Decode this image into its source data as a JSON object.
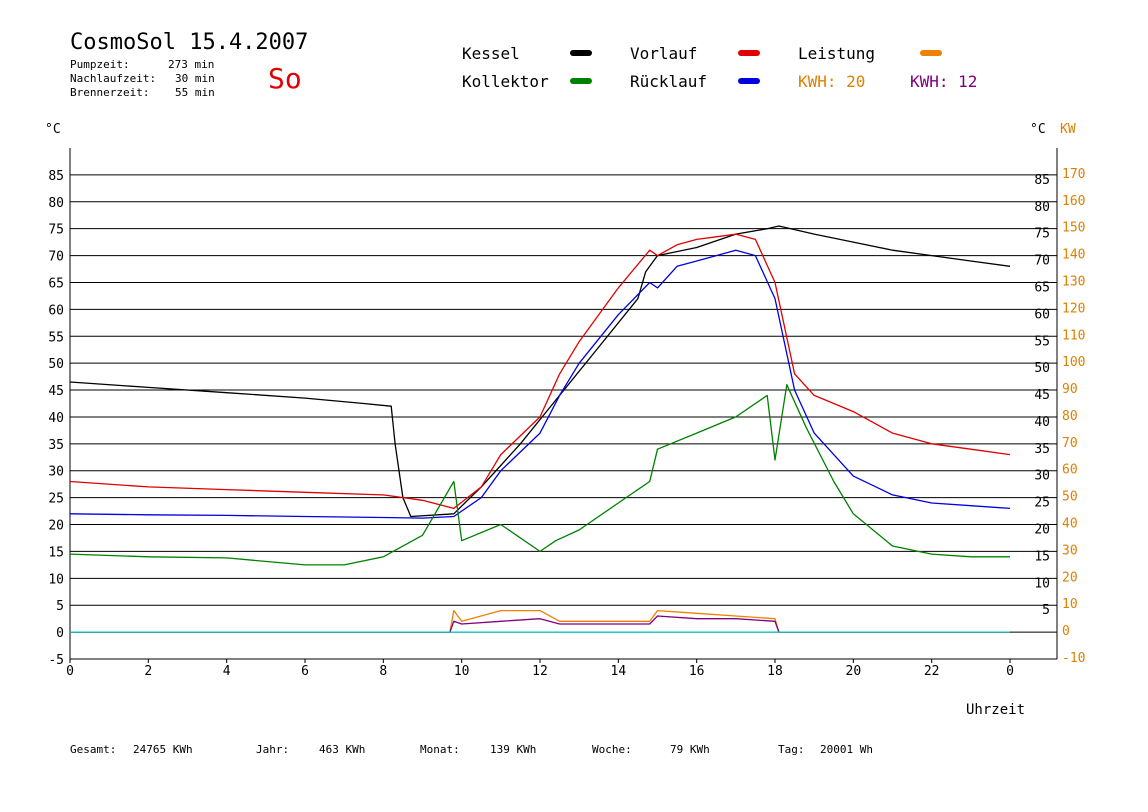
{
  "header": {
    "title": "CosmoSol 15.4.2007",
    "day": "So",
    "stats": [
      {
        "label": "Pumpzeit:",
        "value": "273 min"
      },
      {
        "label": "Nachlaufzeit:",
        "value": "30 min"
      },
      {
        "label": "Brennerzeit:",
        "value": "55 min"
      }
    ]
  },
  "legend": {
    "kessel": {
      "label": "Kessel",
      "color": "#000000"
    },
    "vorlauf": {
      "label": "Vorlauf",
      "color": "#e00000"
    },
    "leistung": {
      "label": "Leistung",
      "color": "#f08000"
    },
    "kollektor": {
      "label": "Kollektor",
      "color": "#008000"
    },
    "ruecklauf": {
      "label": "Rücklauf",
      "color": "#0000e0"
    },
    "kwh1": {
      "label": "KWH: 20",
      "color": "#e08000"
    },
    "kwh2": {
      "label": "KWH: 12",
      "color": "#800080"
    }
  },
  "axes": {
    "left_unit": "°C",
    "right_unit_c": "°C",
    "right_unit_kw": "KW",
    "x_label": "Uhrzeit"
  },
  "footer": [
    {
      "label": "Gesamt:",
      "value": "24765 KWh"
    },
    {
      "label": "Jahr:",
      "value": "463 KWh"
    },
    {
      "label": "Monat:",
      "value": "139 KWh"
    },
    {
      "label": "Woche:",
      "value": "79 KWh"
    },
    {
      "label": "Tag:",
      "value": "20001 Wh"
    }
  ],
  "chart_data": {
    "type": "line",
    "x_unit": "hour",
    "xlim": [
      0,
      24
    ],
    "x_ticks": [
      "0",
      "2",
      "4",
      "6",
      "8",
      "10",
      "12",
      "14",
      "16",
      "18",
      "20",
      "22",
      "0"
    ],
    "ylim": [
      -5,
      90
    ],
    "y_ticks_left": [
      "85",
      "80",
      "75",
      "70",
      "65",
      "60",
      "55",
      "50",
      "45",
      "40",
      "35",
      "30",
      "25",
      "20",
      "15",
      "10",
      "5",
      "0",
      "-5"
    ],
    "y_ticks_right_c": [
      "85",
      "80",
      "75",
      "70",
      "65",
      "60",
      "55",
      "50",
      "45",
      "40",
      "35",
      "30",
      "25",
      "20",
      "15",
      "10",
      "5"
    ],
    "y_ticks_right_kw": [
      "170",
      "160",
      "150",
      "140",
      "130",
      "120",
      "110",
      "100",
      "90",
      "80",
      "70",
      "60",
      "50",
      "40",
      "30",
      "20",
      "10",
      "0",
      "-10"
    ],
    "series": [
      {
        "name": "Kessel",
        "color": "#000000",
        "x": [
          0,
          2,
          4,
          6,
          7.5,
          8.2,
          8.3,
          8.5,
          8.7,
          9.8,
          10.5,
          11.5,
          12.5,
          13.5,
          14.5,
          14.7,
          15,
          16,
          17,
          17.8,
          18.1,
          19,
          20,
          21,
          22,
          23,
          24
        ],
        "y": [
          46.5,
          45.5,
          44.5,
          43.5,
          42.5,
          42,
          35,
          25,
          21.5,
          22,
          27,
          35,
          44,
          53,
          62,
          67,
          70,
          71.5,
          74,
          75,
          75.5,
          74,
          72.5,
          71,
          70,
          69,
          68
        ]
      },
      {
        "name": "Vorlauf",
        "color": "#e00000",
        "x": [
          0,
          2,
          4,
          6,
          8,
          9,
          9.8,
          10.5,
          11,
          12,
          12.5,
          13,
          14,
          14.8,
          15,
          15.5,
          16,
          16.5,
          17,
          17.5,
          18,
          18.5,
          19,
          20,
          21,
          22,
          23,
          24
        ],
        "y": [
          28,
          27,
          26.5,
          26,
          25.5,
          24.5,
          23,
          27,
          33,
          40,
          48,
          54,
          64,
          71,
          70,
          72,
          73,
          73.5,
          74,
          73,
          65,
          48,
          44,
          41,
          37,
          35,
          34,
          33
        ]
      },
      {
        "name": "Rücklauf",
        "color": "#0000e0",
        "x": [
          0,
          2,
          4,
          6,
          8,
          9,
          9.8,
          10.5,
          11,
          12,
          12.5,
          13,
          14,
          14.8,
          15,
          15.5,
          16,
          16.5,
          17,
          17.5,
          18,
          18.5,
          19,
          20,
          21,
          22,
          23,
          24
        ],
        "y": [
          22,
          21.8,
          21.7,
          21.5,
          21.3,
          21.2,
          21.5,
          25,
          30,
          37,
          44,
          50,
          59,
          65,
          64,
          68,
          69,
          70,
          71,
          70,
          62,
          45,
          37,
          29,
          25.5,
          24,
          23.5,
          23
        ]
      },
      {
        "name": "Kollektor",
        "color": "#008000",
        "x": [
          0,
          2,
          4,
          6,
          7,
          8,
          9,
          9.8,
          10,
          11,
          12,
          12.4,
          13,
          14,
          14.8,
          15,
          16,
          17,
          17.8,
          18,
          18.3,
          18.8,
          19.5,
          20,
          21,
          22,
          23,
          24
        ],
        "y": [
          14.5,
          14,
          13.8,
          12.5,
          12.5,
          14,
          18,
          28,
          17,
          20,
          15,
          17,
          19,
          24,
          28,
          34,
          37,
          40,
          44,
          32,
          46,
          38,
          28,
          22,
          16,
          14.5,
          14,
          14
        ]
      },
      {
        "name": "Leistung",
        "color": "#f08000",
        "x": [
          0,
          9.7,
          9.8,
          10,
          11,
          12,
          12.5,
          14,
          14.8,
          15,
          16,
          17,
          18,
          18.1,
          24
        ],
        "y": [
          0,
          0,
          4,
          2,
          4,
          4,
          2,
          2,
          2,
          4,
          3.5,
          3,
          2.5,
          0,
          0
        ]
      },
      {
        "name": "KWH",
        "color": "#800080",
        "x": [
          0,
          9.7,
          9.8,
          10,
          11,
          12,
          12.5,
          14,
          14.8,
          15,
          16,
          17,
          18,
          18.1,
          24
        ],
        "y": [
          0,
          0,
          2,
          1.5,
          2,
          2.5,
          1.5,
          1.5,
          1.5,
          3,
          2.5,
          2.5,
          2,
          0,
          0
        ]
      },
      {
        "name": "Pumpe",
        "color": "#00c8c8",
        "x": [
          0,
          24
        ],
        "y": [
          0,
          0
        ]
      }
    ]
  }
}
